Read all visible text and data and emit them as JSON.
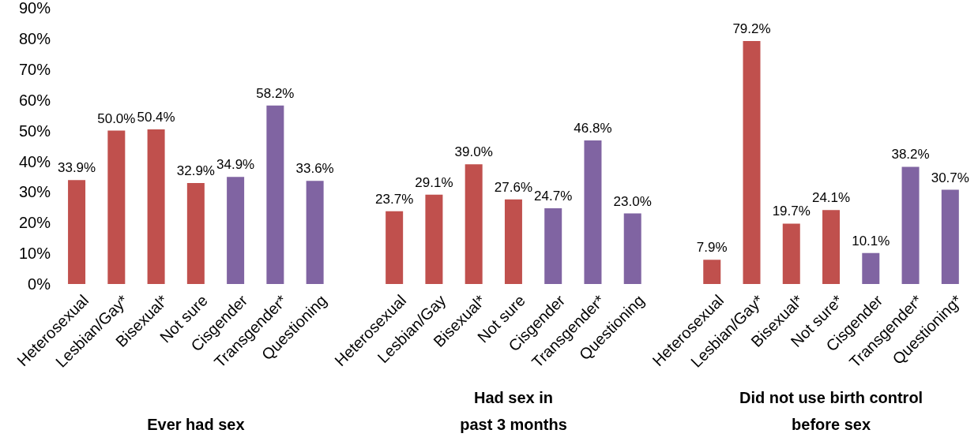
{
  "chart_data": {
    "type": "bar",
    "categories": [
      "Heterosexual",
      "Lesbian/Gay*",
      "Bisexual*",
      "Not sure",
      "Cisgender",
      "Transgender*",
      "Questioning",
      null,
      "Heterosexual",
      "Lesbian/Gay",
      "Bisexual*",
      "Not sure",
      "Cisgender",
      "Transgender*",
      "Questioning",
      null,
      "Heterosexual",
      "Lesbian/Gay*",
      "Bisexual*",
      "Not sure*",
      "Cisgender",
      "Transgender*",
      "Questioning*"
    ],
    "values": [
      33.9,
      50.0,
      50.4,
      32.9,
      34.9,
      58.2,
      33.6,
      null,
      23.7,
      29.1,
      39.0,
      27.6,
      24.7,
      46.8,
      23.0,
      null,
      7.9,
      79.2,
      19.7,
      24.1,
      10.1,
      38.2,
      30.7
    ],
    "value_labels": [
      "33.9%",
      "50.0%",
      "50.4%",
      "32.9%",
      "34.9%",
      "58.2%",
      "33.6%",
      null,
      "23.7%",
      "29.1%",
      "39.0%",
      "27.6%",
      "24.7%",
      "46.8%",
      "23.0%",
      null,
      "7.9%",
      "79.2%",
      "19.7%",
      "24.1%",
      "10.1%",
      "38.2%",
      "30.7%"
    ],
    "colors": [
      "#c0504d",
      "#c0504d",
      "#c0504d",
      "#c0504d",
      "#8064a2",
      "#8064a2",
      "#8064a2",
      null,
      "#c0504d",
      "#c0504d",
      "#c0504d",
      "#c0504d",
      "#8064a2",
      "#8064a2",
      "#8064a2",
      null,
      "#c0504d",
      "#c0504d",
      "#c0504d",
      "#c0504d",
      "#8064a2",
      "#8064a2",
      "#8064a2"
    ],
    "ylim": [
      0,
      90
    ],
    "yticks": [
      {
        "value": 0,
        "label": "0%"
      },
      {
        "value": 10,
        "label": "10%"
      },
      {
        "value": 20,
        "label": "20%"
      },
      {
        "value": 30,
        "label": "30%"
      },
      {
        "value": 40,
        "label": "40%"
      },
      {
        "value": 50,
        "label": "50%"
      },
      {
        "value": 60,
        "label": "60%"
      },
      {
        "value": 70,
        "label": "70%"
      },
      {
        "value": 80,
        "label": "80%"
      },
      {
        "value": 90,
        "label": "90%"
      }
    ],
    "grid": false,
    "legend": false,
    "annotations": [
      "Ever had sex",
      "Had sex in\npast 3 months",
      "Did not use birth control\nbefore sex"
    ]
  }
}
